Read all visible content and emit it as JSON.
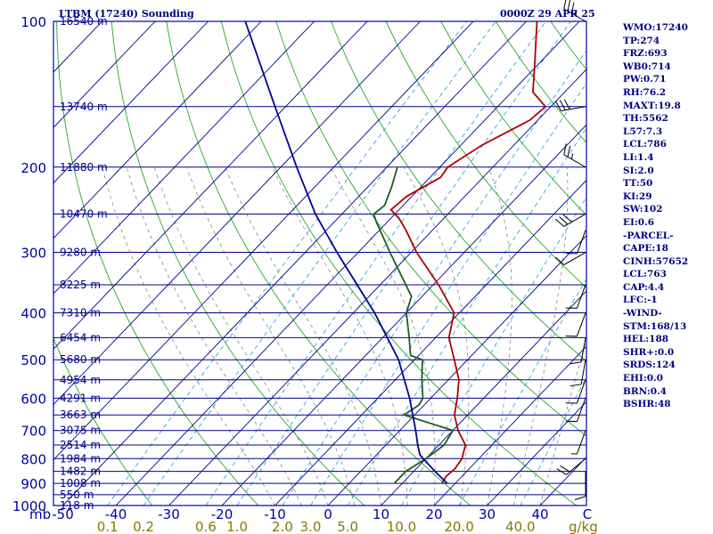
{
  "header": {
    "title": "LTBM (17240) Sounding",
    "timestamp": "0000Z 29 APR 25"
  },
  "stats": [
    "WMO:17240",
    "TP:274",
    "FRZ:693",
    "WB0:714",
    "PW:0.71",
    "RH:76.2",
    "MAXT:19.8",
    "TH:5562",
    "L57:7.3",
    "LCL:786",
    "LI:1.4",
    "SI:2.0",
    "TT:50",
    "KI:29",
    "SW:102",
    "EI:0.6",
    "-PARCEL-",
    "CAPE:18",
    "CINH:57652",
    "LCL:763",
    "CAP:4.4",
    "LFC:-1",
    "-WIND-",
    "STM:168/13",
    "HEL:188",
    "SHR+:0.0",
    "SRDS:124",
    "EHI:0.0",
    "BRN:0.4",
    "BSHR:48"
  ],
  "colors": {
    "frame": "#0000aa",
    "isobar": "#00008b",
    "isotherm": "#00008b",
    "dry_adiabat": "#22aa22",
    "moist_adiabat": "#888888",
    "mixing_ratio": "#2aa8e0",
    "temperature": "#b00000",
    "dewpoint": "#1b5e1b",
    "parcel": "#000099",
    "pressure_label": "#0000aa",
    "height_label": "#00008b",
    "mixing_label": "#8b7500"
  },
  "chart_data": {
    "type": "line",
    "y_axis_unit": "mb",
    "x_axis_unit_label": "mb",
    "mixing_unit_label": "g/kg",
    "pressure_ticks": [
      "100",
      "200",
      "300",
      "400",
      "500",
      "600",
      "700",
      "800",
      "900",
      "1000"
    ],
    "temperature_ticks": [
      "-50",
      "-40",
      "-30",
      "-20",
      "-10",
      "0",
      "10",
      "20",
      "30",
      "40",
      "C"
    ],
    "mixing_ratio_ticks": [
      "0.1",
      "0.2",
      "0.6",
      "1.0",
      "2.0",
      "3.0",
      "5.0",
      "10.0",
      "20.0",
      "40.0"
    ],
    "height_labels": [
      {
        "pressure": 100,
        "text": "16540 m"
      },
      {
        "pressure": 150,
        "text": "13740 m"
      },
      {
        "pressure": 200,
        "text": "11880 m"
      },
      {
        "pressure": 250,
        "text": "10470 m"
      },
      {
        "pressure": 300,
        "text": "9280 m"
      },
      {
        "pressure": 350,
        "text": "8225 m"
      },
      {
        "pressure": 400,
        "text": "7310 m"
      },
      {
        "pressure": 450,
        "text": "6454 m"
      },
      {
        "pressure": 500,
        "text": "5680 m"
      },
      {
        "pressure": 550,
        "text": "4954 m"
      },
      {
        "pressure": 600,
        "text": "4291 m"
      },
      {
        "pressure": 650,
        "text": "3663 m"
      },
      {
        "pressure": 700,
        "text": "3075 m"
      },
      {
        "pressure": 750,
        "text": "2514 m"
      },
      {
        "pressure": 800,
        "text": "1984 m"
      },
      {
        "pressure": 850,
        "text": "1482 m"
      },
      {
        "pressure": 900,
        "text": "1008 m"
      },
      {
        "pressure": 950,
        "text": "550 m"
      },
      {
        "pressure": 1000,
        "text": "118 m"
      }
    ],
    "series": [
      {
        "key": "temperature",
        "points": [
          {
            "p": 900,
            "t": 17.5
          },
          {
            "p": 870,
            "t": 17.0
          },
          {
            "p": 840,
            "t": 17.3
          },
          {
            "p": 800,
            "t": 16.8
          },
          {
            "p": 750,
            "t": 15.0
          },
          {
            "p": 700,
            "t": 11.0
          },
          {
            "p": 650,
            "t": 7.5
          },
          {
            "p": 600,
            "t": 5.0
          },
          {
            "p": 550,
            "t": 2.0
          },
          {
            "p": 500,
            "t": -2.5
          },
          {
            "p": 450,
            "t": -7.5
          },
          {
            "p": 400,
            "t": -11.0
          },
          {
            "p": 350,
            "t": -19.0
          },
          {
            "p": 300,
            "t": -29.0
          },
          {
            "p": 270,
            "t": -35.0
          },
          {
            "p": 255,
            "t": -38.5
          },
          {
            "p": 245,
            "t": -41.5
          },
          {
            "p": 230,
            "t": -41.0
          },
          {
            "p": 210,
            "t": -38.0
          },
          {
            "p": 200,
            "t": -38.5
          },
          {
            "p": 180,
            "t": -36.0
          },
          {
            "p": 160,
            "t": -31.5
          },
          {
            "p": 150,
            "t": -31.0
          },
          {
            "p": 140,
            "t": -36.0
          },
          {
            "p": 125,
            "t": -40.0
          },
          {
            "p": 100,
            "t": -48.0
          }
        ]
      },
      {
        "key": "dewpoint",
        "points": [
          {
            "p": 900,
            "t": 8.5
          },
          {
            "p": 850,
            "t": 8.5
          },
          {
            "p": 800,
            "t": 10.0
          },
          {
            "p": 750,
            "t": 11.0
          },
          {
            "p": 700,
            "t": 10.0
          },
          {
            "p": 650,
            "t": -2.0
          },
          {
            "p": 620,
            "t": -1.0
          },
          {
            "p": 600,
            "t": -1.5
          },
          {
            "p": 550,
            "t": -5.0
          },
          {
            "p": 500,
            "t": -8.5
          },
          {
            "p": 490,
            "t": -11.5
          },
          {
            "p": 450,
            "t": -15.0
          },
          {
            "p": 400,
            "t": -20.0
          },
          {
            "p": 370,
            "t": -22.0
          },
          {
            "p": 300,
            "t": -34.0
          },
          {
            "p": 260,
            "t": -42.0
          },
          {
            "p": 250,
            "t": -44.0
          },
          {
            "p": 240,
            "t": -43.5
          },
          {
            "p": 220,
            "t": -45.5
          },
          {
            "p": 200,
            "t": -48.0
          }
        ]
      },
      {
        "key": "parcel",
        "points": [
          {
            "p": 900,
            "t": 18.5
          },
          {
            "p": 850,
            "t": 14.0
          },
          {
            "p": 800,
            "t": 9.5
          },
          {
            "p": 786,
            "t": 8.2
          },
          {
            "p": 750,
            "t": 6.0
          },
          {
            "p": 700,
            "t": 3.0
          },
          {
            "p": 600,
            "t": -4.0
          },
          {
            "p": 500,
            "t": -13.0
          },
          {
            "p": 400,
            "t": -26.0
          },
          {
            "p": 300,
            "t": -44.0
          },
          {
            "p": 250,
            "t": -55.0
          },
          {
            "p": 200,
            "t": -67.0
          },
          {
            "p": 150,
            "t": -82.0
          },
          {
            "p": 100,
            "t": -103.0
          }
        ]
      }
    ],
    "wind_barbs": [
      {
        "p": 100,
        "dir": 300,
        "speed": 35
      },
      {
        "p": 150,
        "dir": 260,
        "speed": 30
      },
      {
        "p": 200,
        "dir": 300,
        "speed": 25
      },
      {
        "p": 250,
        "dir": 240,
        "speed": 30
      },
      {
        "p": 270,
        "dir": 200,
        "speed": 10
      },
      {
        "p": 300,
        "dir": 240,
        "speed": 10
      },
      {
        "p": 350,
        "dir": 200,
        "speed": 10
      },
      {
        "p": 400,
        "dir": 200,
        "speed": 10
      },
      {
        "p": 450,
        "dir": 190,
        "speed": 10
      },
      {
        "p": 500,
        "dir": 190,
        "speed": 10
      },
      {
        "p": 550,
        "dir": 200,
        "speed": 10
      },
      {
        "p": 600,
        "dir": 200,
        "speed": 10
      },
      {
        "p": 700,
        "dir": 200,
        "speed": 5
      },
      {
        "p": 800,
        "dir": 230,
        "speed": 20
      },
      {
        "p": 850,
        "dir": 180,
        "speed": 10
      }
    ],
    "diagram_lines": {
      "isobars_mb": [
        100,
        150,
        200,
        250,
        300,
        350,
        400,
        450,
        500,
        550,
        600,
        650,
        700,
        750,
        800,
        850,
        900,
        950,
        1000
      ],
      "isotherms_c": [
        -150,
        -140,
        -130,
        -120,
        -110,
        -100,
        -90,
        -80,
        -70,
        -60,
        -50,
        -40,
        -30,
        -20,
        -10,
        0,
        10,
        20,
        30,
        40
      ],
      "dry_adiabats_k": [
        240,
        260,
        280,
        300,
        320,
        340,
        360,
        380,
        400,
        420,
        440,
        460,
        480,
        500,
        520,
        540,
        560,
        580,
        600,
        620,
        640
      ],
      "moist_adiabats_c": [
        -10,
        -5,
        0,
        5,
        10,
        15,
        20,
        25,
        30,
        35,
        40
      ],
      "mixing_ratios_gkg": [
        0.1,
        0.2,
        0.6,
        1.0,
        2.0,
        3.0,
        5.0,
        10.0,
        20.0,
        40.0
      ]
    },
    "axis_ranges": {
      "pressure_mb": [
        1000,
        100
      ],
      "temperature_c": [
        -50,
        50
      ]
    }
  }
}
